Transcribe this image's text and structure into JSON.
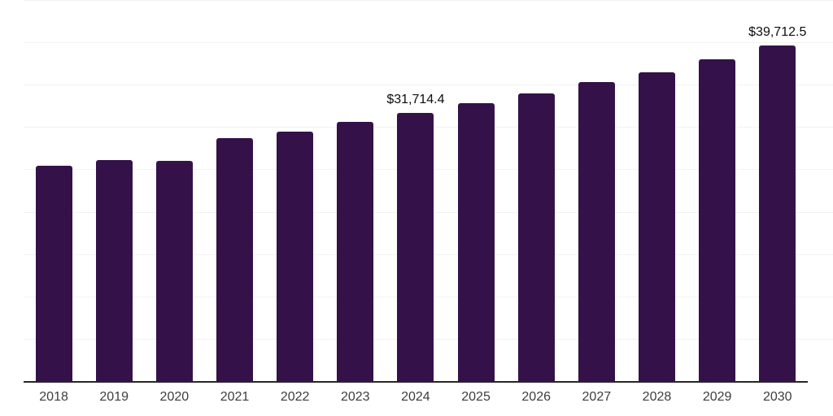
{
  "chart_data": {
    "type": "bar",
    "title": "",
    "xlabel": "",
    "ylabel": "",
    "categories": [
      "2018",
      "2019",
      "2020",
      "2021",
      "2022",
      "2023",
      "2024",
      "2025",
      "2026",
      "2027",
      "2028",
      "2029",
      "2030"
    ],
    "values": [
      25500,
      26150,
      26100,
      28800,
      29600,
      30700,
      31714.4,
      32900,
      34100,
      35400,
      36600,
      38100,
      39712.5
    ],
    "data_labels": {
      "2024": "$31,714.4",
      "2030": "$39,712.5"
    },
    "ylim": [
      0,
      45000
    ],
    "grid_step": 5000,
    "grid": "on",
    "legend": "none",
    "colors": {
      "bar": "#341249",
      "gridline": "#f2f2f2",
      "axis_line": "#262626",
      "tick_label": "#3d3d3d",
      "data_label": "#0d0d0d",
      "background": "#ffffff"
    }
  }
}
